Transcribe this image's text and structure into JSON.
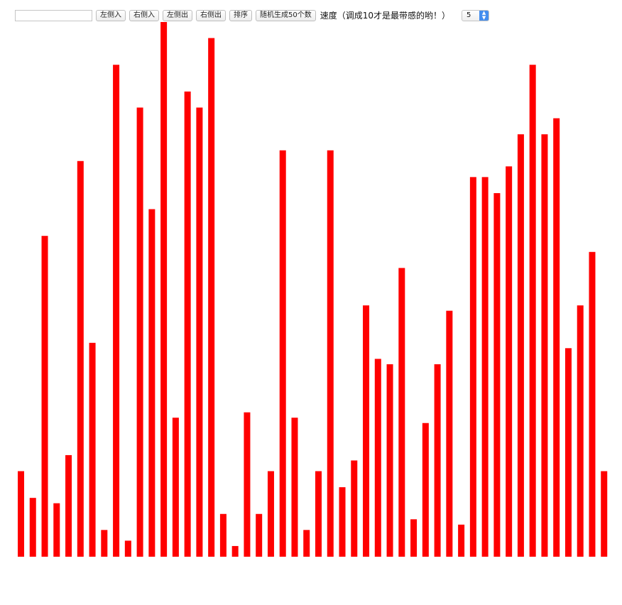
{
  "controls": {
    "input_value": "",
    "buttons": {
      "left_in": "左侧入",
      "right_in": "右侧入",
      "left_out": "左侧出",
      "right_out": "右侧出",
      "sort": "排序",
      "random": "随机生成50个数"
    },
    "speed_label": "速度（调成10才是最带感的哟！）",
    "speed_value": "5"
  },
  "chart_data": {
    "type": "bar",
    "color": "#ff0000",
    "y_max": 100,
    "values": [
      16,
      11,
      60,
      10,
      19,
      74,
      40,
      5,
      92,
      3,
      84,
      65,
      100,
      26,
      87,
      84,
      97,
      8,
      2,
      27,
      8,
      16,
      76,
      26,
      5,
      16,
      76,
      13,
      18,
      47,
      37,
      36,
      54,
      7,
      25,
      36,
      46,
      6,
      71,
      71,
      68,
      73,
      79,
      92,
      79,
      82,
      39,
      47,
      57,
      16
    ]
  }
}
